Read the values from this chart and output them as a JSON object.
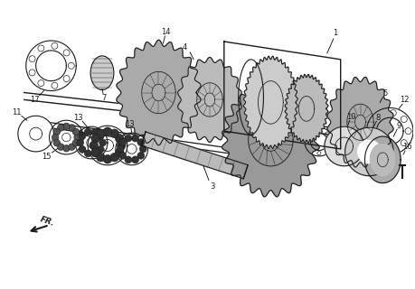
{
  "background_color": "#ffffff",
  "line_color": "#1a1a1a",
  "label_color": "#000000",
  "figsize": [
    4.59,
    3.2
  ],
  "dpi": 100
}
